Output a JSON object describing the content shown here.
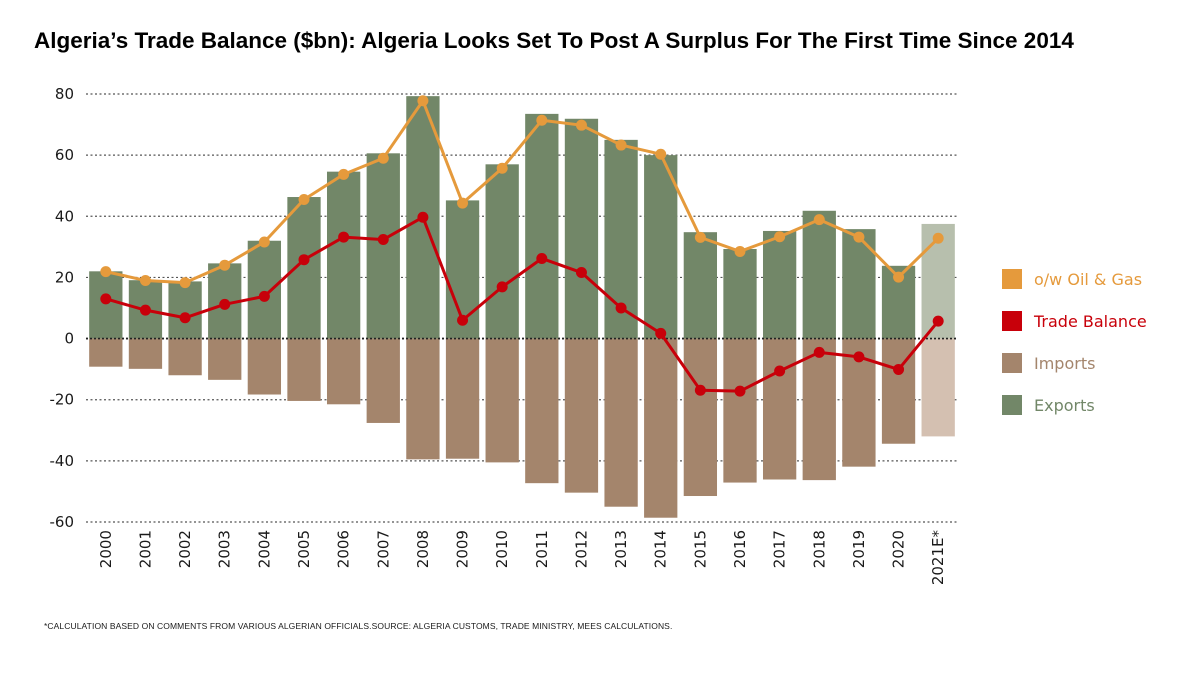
{
  "title": "Algeria’s Trade Balance ($bn): Algeria Looks Set To Post A Surplus For The First Time Since 2014",
  "footnote": "*CALCULATION BASED ON COMMENTS FROM VARIOUS ALGERIAN OFFICIALS.SOURCE: ALGERIA CUSTOMS, TRADE MINISTRY, MEES CALCULATIONS.",
  "colors": {
    "exports": "#728768",
    "imports": "#a4856c",
    "exports_estimate": "#b7bfad",
    "imports_estimate": "#d4c0b1",
    "oil_gas": "#e59a3c",
    "trade_balance": "#c8000a",
    "grid": "#555555"
  },
  "legend": [
    {
      "key": "oil_gas",
      "label": "o/w Oil & Gas"
    },
    {
      "key": "trade_balance",
      "label": "Trade Balance"
    },
    {
      "key": "imports",
      "label": "Imports"
    },
    {
      "key": "exports",
      "label": "Exports"
    }
  ],
  "chart_data": {
    "type": "bar",
    "title": "Algeria’s Trade Balance ($bn): Algeria Looks Set To Post A Surplus For The First Time Since 2014",
    "xlabel": "",
    "ylabel": "",
    "ylim": [
      -60,
      80
    ],
    "yticks": [
      80,
      60,
      40,
      20,
      0,
      -20,
      -40,
      -60
    ],
    "grid": true,
    "legend_position": "right",
    "categories": [
      "2000",
      "2001",
      "2002",
      "2003",
      "2004",
      "2005",
      "2006",
      "2007",
      "2008",
      "2009",
      "2010",
      "2011",
      "2012",
      "2013",
      "2014",
      "2015",
      "2016",
      "2017",
      "2018",
      "2019",
      "2020",
      "2021E*"
    ],
    "estimate_categories": [
      "2021E*"
    ],
    "series": [
      {
        "name": "Exports",
        "type": "bar",
        "values": [
          22,
          19.1,
          18.7,
          24.6,
          32,
          46.3,
          54.6,
          60.6,
          79.3,
          45.2,
          57,
          73.5,
          71.9,
          65,
          60,
          34.8,
          29.3,
          35.2,
          41.8,
          35.8,
          23.8,
          37.5
        ]
      },
      {
        "name": "Imports",
        "type": "bar",
        "values": [
          -9.2,
          -9.9,
          -12,
          -13.5,
          -18.3,
          -20.4,
          -21.5,
          -27.6,
          -39.5,
          -39.3,
          -40.5,
          -47.3,
          -50.4,
          -55,
          -58.6,
          -51.5,
          -47.1,
          -46.1,
          -46.3,
          -41.9,
          -34.4,
          -32
        ]
      },
      {
        "name": "o/w Oil & Gas",
        "type": "line",
        "values": [
          21.9,
          19,
          18.3,
          24,
          31.6,
          45.5,
          53.7,
          59,
          77.8,
          44.3,
          55.7,
          71.4,
          69.8,
          63.3,
          60.3,
          33.1,
          28.5,
          33.3,
          38.9,
          33.2,
          20.1,
          32.8
        ]
      },
      {
        "name": "Trade Balance",
        "type": "line",
        "values": [
          13,
          9.3,
          6.8,
          11.2,
          13.8,
          25.8,
          33.2,
          32.4,
          39.7,
          6,
          16.9,
          26.2,
          21.6,
          10,
          1.7,
          -16.9,
          -17.2,
          -10.6,
          -4.5,
          -6,
          -10.1,
          5.7
        ]
      }
    ]
  }
}
